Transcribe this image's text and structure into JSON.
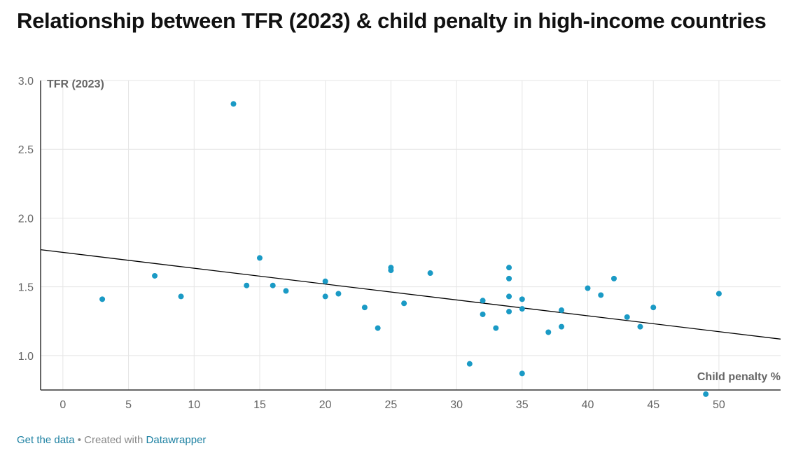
{
  "title": "Relationship between TFR (2023) & child penalty in high-income countries",
  "footer": {
    "get_data": "Get the data",
    "separator": " • Created with ",
    "tool": "Datawrapper"
  },
  "colors": {
    "point": "#1a9ac5",
    "trend": "#000000",
    "grid": "#e5e5e5",
    "axis": "#333333"
  },
  "chart_data": {
    "type": "scatter",
    "title": "Relationship between TFR (2023) & child penalty in high-income countries",
    "xlabel": "Child penalty %",
    "ylabel": "TFR (2023)",
    "xlim": [
      -1.7,
      54.7
    ],
    "ylim": [
      0.75,
      3.0
    ],
    "x_ticks": [
      0,
      5,
      10,
      15,
      20,
      25,
      30,
      35,
      40,
      45,
      50
    ],
    "y_ticks": [
      1.0,
      1.5,
      2.0,
      2.5,
      3.0
    ],
    "y_tick_labels": [
      "1.0",
      "1.5",
      "2.0",
      "2.5",
      "3.0"
    ],
    "grid": true,
    "trendline": {
      "x": [
        -1.7,
        54.7
      ],
      "y": [
        1.77,
        1.12
      ]
    },
    "points": [
      {
        "x": 3,
        "y": 1.41
      },
      {
        "x": 7,
        "y": 1.58
      },
      {
        "x": 9,
        "y": 1.43
      },
      {
        "x": 13,
        "y": 2.83
      },
      {
        "x": 14,
        "y": 1.51
      },
      {
        "x": 15,
        "y": 1.71
      },
      {
        "x": 16,
        "y": 1.51
      },
      {
        "x": 17,
        "y": 1.47
      },
      {
        "x": 20,
        "y": 1.54
      },
      {
        "x": 20,
        "y": 1.43
      },
      {
        "x": 21,
        "y": 1.45
      },
      {
        "x": 23,
        "y": 1.35
      },
      {
        "x": 24,
        "y": 1.2
      },
      {
        "x": 25,
        "y": 1.64
      },
      {
        "x": 25,
        "y": 1.62
      },
      {
        "x": 26,
        "y": 1.38
      },
      {
        "x": 28,
        "y": 1.6
      },
      {
        "x": 31,
        "y": 0.94
      },
      {
        "x": 32,
        "y": 1.4
      },
      {
        "x": 32,
        "y": 1.3
      },
      {
        "x": 33,
        "y": 1.2
      },
      {
        "x": 34,
        "y": 1.64
      },
      {
        "x": 34,
        "y": 1.56
      },
      {
        "x": 34,
        "y": 1.43
      },
      {
        "x": 34,
        "y": 1.32
      },
      {
        "x": 35,
        "y": 1.41
      },
      {
        "x": 35,
        "y": 1.34
      },
      {
        "x": 35,
        "y": 0.87
      },
      {
        "x": 37,
        "y": 1.17
      },
      {
        "x": 38,
        "y": 1.33
      },
      {
        "x": 38,
        "y": 1.21
      },
      {
        "x": 40,
        "y": 1.49
      },
      {
        "x": 41,
        "y": 1.44
      },
      {
        "x": 42,
        "y": 1.56
      },
      {
        "x": 43,
        "y": 1.28
      },
      {
        "x": 44,
        "y": 1.21
      },
      {
        "x": 45,
        "y": 1.35
      },
      {
        "x": 49,
        "y": 0.72
      },
      {
        "x": 50,
        "y": 1.45
      }
    ]
  }
}
